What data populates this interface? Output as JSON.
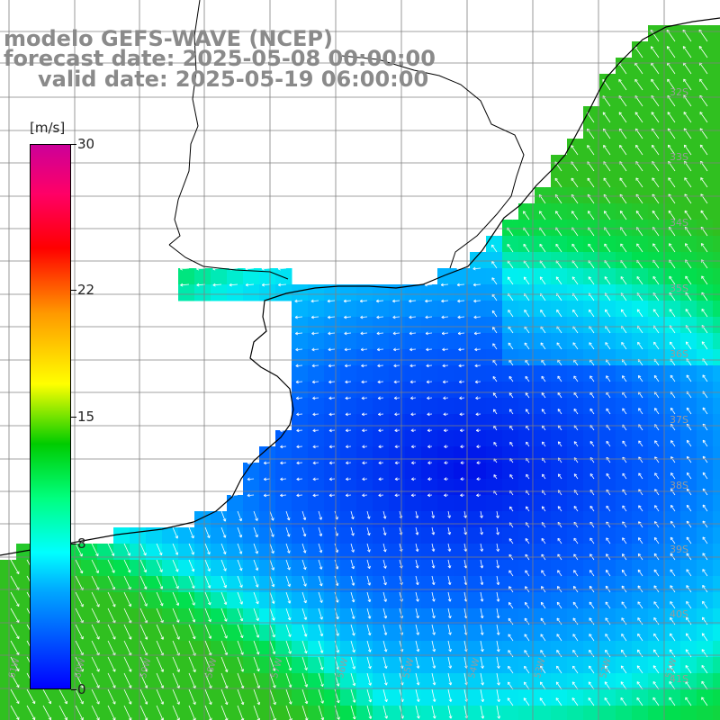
{
  "header": {
    "line1": "modelo GEFS-WAVE (NCEP)",
    "line2": "forecast date: 2025-05-08 00:00:00",
    "line3": "valid date: 2025-05-19 06:00:00"
  },
  "colorbar": {
    "unit": "[m/s]",
    "ticks": [
      {
        "label": "30",
        "value": 30
      },
      {
        "label": "22",
        "value": 22
      },
      {
        "label": "15",
        "value": 15
      },
      {
        "label": "8",
        "value": 8
      },
      {
        "label": "0",
        "value": 0
      }
    ],
    "min": 0,
    "max": 30
  },
  "lat_labels": [
    "32S",
    "33S",
    "34S",
    "35S",
    "36S",
    "37S",
    "38S",
    "39S",
    "40S",
    "41S"
  ],
  "lon_labels": [
    "61W",
    "60W",
    "59W",
    "58W",
    "57W",
    "56W",
    "55W",
    "54W",
    "53W",
    "52W",
    "51W"
  ],
  "colors": {
    "calm": "#0010e8",
    "moderate": "#00a8ff",
    "fresh": "#00ffff",
    "strong": "#00e040",
    "land": "#ffffff",
    "coast": "#000000",
    "grid": "#808080",
    "arrow": "#ffffff"
  }
}
